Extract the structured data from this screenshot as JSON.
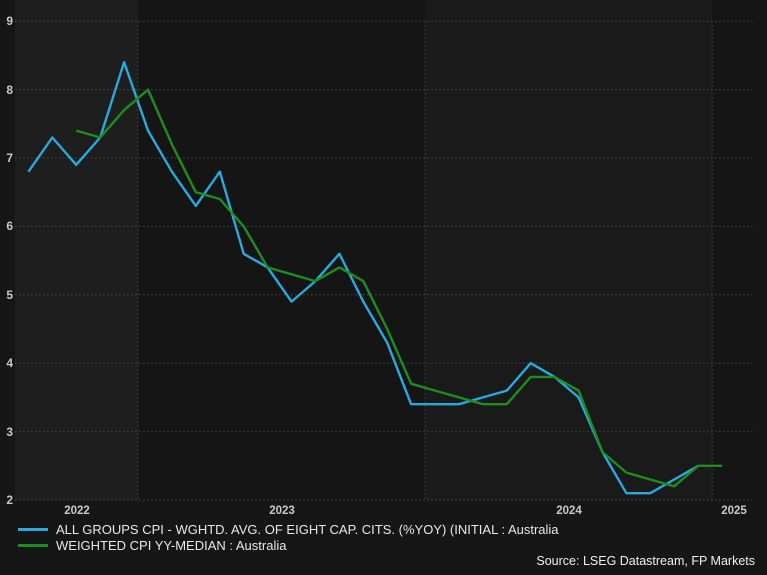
{
  "background_color": "#161616",
  "axis": {
    "gridline_color": "#575757",
    "tick_label_color": "#c9c9c9"
  },
  "chart_data": {
    "type": "line",
    "title": "",
    "x_unit": "month",
    "x": [
      "2022-08",
      "2022-09",
      "2022-10",
      "2022-11",
      "2022-12",
      "2023-01",
      "2023-02",
      "2023-03",
      "2023-04",
      "2023-05",
      "2023-06",
      "2023-07",
      "2023-08",
      "2023-09",
      "2023-10",
      "2023-11",
      "2023-12",
      "2024-01",
      "2024-02",
      "2024-03",
      "2024-04",
      "2024-05",
      "2024-06",
      "2024-07",
      "2024-08",
      "2024-09",
      "2024-10",
      "2024-11",
      "2024-12",
      "2025-01"
    ],
    "series": [
      {
        "name": "ALL GROUPS CPI - WGHTD. AVG. OF EIGHT CAP. CITS. (%YOY) (INITIAL : Australia",
        "color": "#2aa9df",
        "values": [
          6.8,
          7.3,
          6.9,
          7.3,
          8.4,
          7.4,
          6.8,
          6.3,
          6.8,
          5.6,
          5.4,
          4.9,
          5.2,
          5.6,
          4.9,
          4.3,
          3.4,
          3.4,
          3.4,
          3.5,
          3.6,
          4.0,
          3.8,
          3.5,
          2.7,
          2.1,
          2.1,
          2.3,
          2.5,
          null
        ]
      },
      {
        "name": "WEIGHTED CPI YY-MEDIAN : Australia",
        "color": "#1f8c1f",
        "values": [
          null,
          null,
          7.4,
          7.3,
          7.7,
          8.0,
          7.2,
          6.5,
          6.4,
          6.0,
          5.4,
          5.3,
          5.2,
          5.4,
          5.2,
          4.5,
          3.7,
          3.6,
          3.5,
          3.4,
          3.4,
          3.8,
          3.8,
          3.6,
          2.7,
          2.4,
          2.3,
          2.2,
          2.5,
          2.5
        ]
      }
    ],
    "ylim": [
      2,
      9
    ],
    "y_ticks": [
      2,
      3,
      4,
      5,
      6,
      7,
      8,
      9
    ],
    "x_tick_years": [
      "2022",
      "2023",
      "2024",
      "2025"
    ],
    "grid": "dotted",
    "legend_position": "bottom-left",
    "plot_bands_by_year": {
      "2022": "#1e1e1e",
      "2023": "#151515",
      "2024": "#1a1a1a",
      "2025": "#151515"
    }
  },
  "source": {
    "text": "Source: LSEG Datastream, FP Markets"
  }
}
